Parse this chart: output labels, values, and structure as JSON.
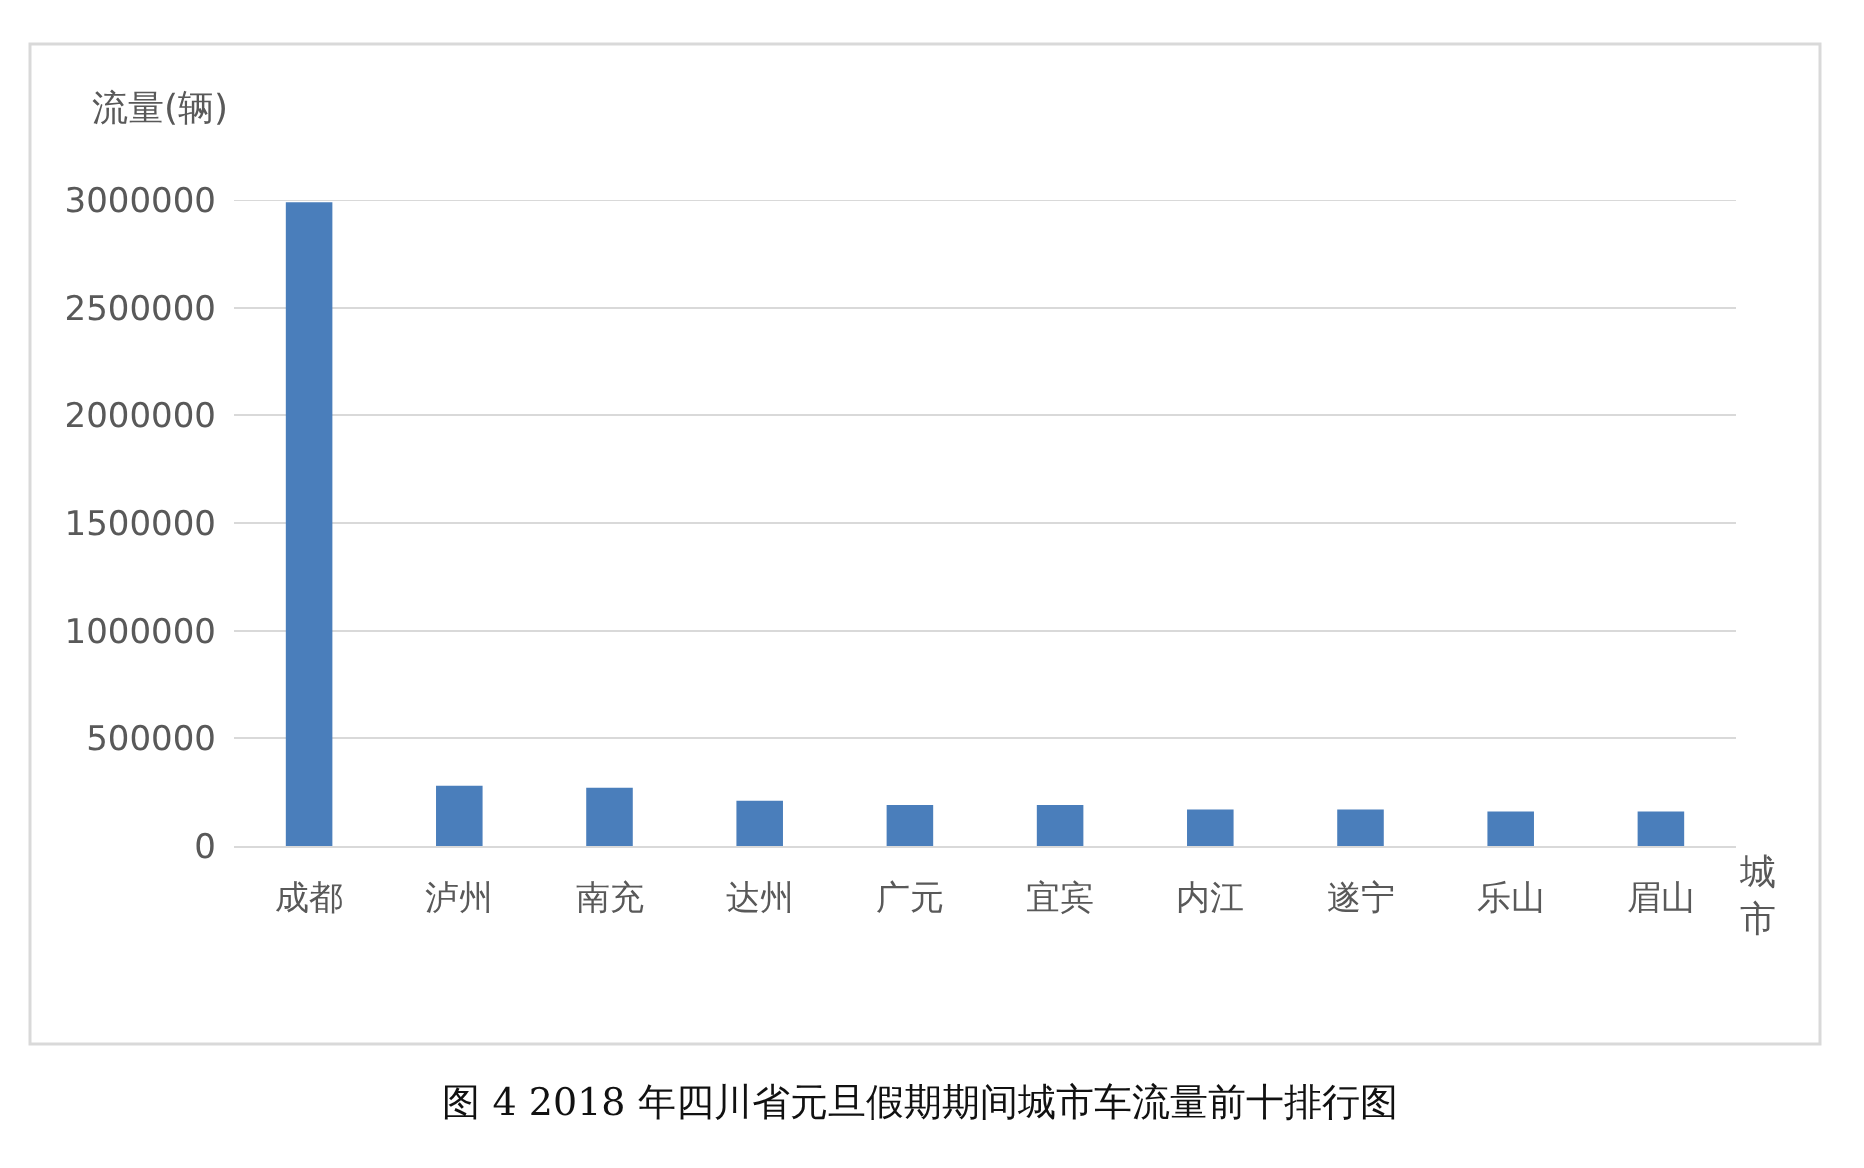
{
  "chart_data": {
    "type": "bar",
    "title": "图 4 2018 年四川省元旦假期期间城市车流量前十排行图",
    "xlabel": "城市",
    "ylabel": "流量(辆)",
    "categories": [
      "成都",
      "泸州",
      "南充",
      "达州",
      "广元",
      "宜宾",
      "内江",
      "遂宁",
      "乐山",
      "眉山"
    ],
    "values": [
      2990000,
      280000,
      270000,
      210000,
      190000,
      190000,
      170000,
      170000,
      160000,
      160000
    ],
    "color": "#4a7ebb",
    "ylim": [
      0,
      3000000
    ],
    "yticks": [
      0,
      500000,
      1000000,
      1500000,
      2000000,
      2500000,
      3000000
    ],
    "grid": "y"
  }
}
